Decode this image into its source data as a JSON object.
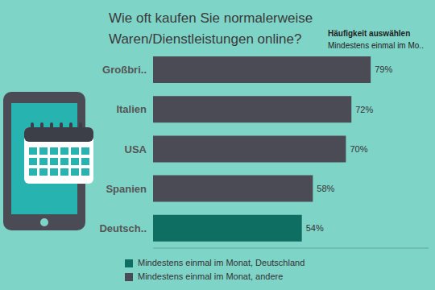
{
  "chart_data": {
    "type": "bar",
    "orientation": "horizontal",
    "title": "Wie oft kaufen Sie normalerweise Waren/Dienstleistungen online?",
    "subtitle": "Häufigkeit auswählen",
    "annotations": [
      "Mindestens einmal im Mo.."
    ],
    "categories": [
      "Großbri..",
      "Italien",
      "USA",
      "Spanien",
      "Deutsch.."
    ],
    "series": [
      {
        "name": "Mindestens einmal im Monat, Deutschland",
        "color": "#0f6e62",
        "values": [
          null,
          null,
          null,
          null,
          54
        ],
        "value_labels": [
          null,
          null,
          null,
          null,
          "54%"
        ]
      },
      {
        "name": "Mindestens einmal im Monat, andere",
        "color": "#4a4b55",
        "values": [
          79,
          72,
          70,
          58,
          null
        ],
        "value_labels": [
          "79%",
          "72%",
          "70%",
          "58%",
          null
        ]
      }
    ],
    "xlim": [
      0,
      100
    ],
    "tick_labels": "y",
    "data_labels": true,
    "grid": false,
    "legend": "bottom"
  }
}
